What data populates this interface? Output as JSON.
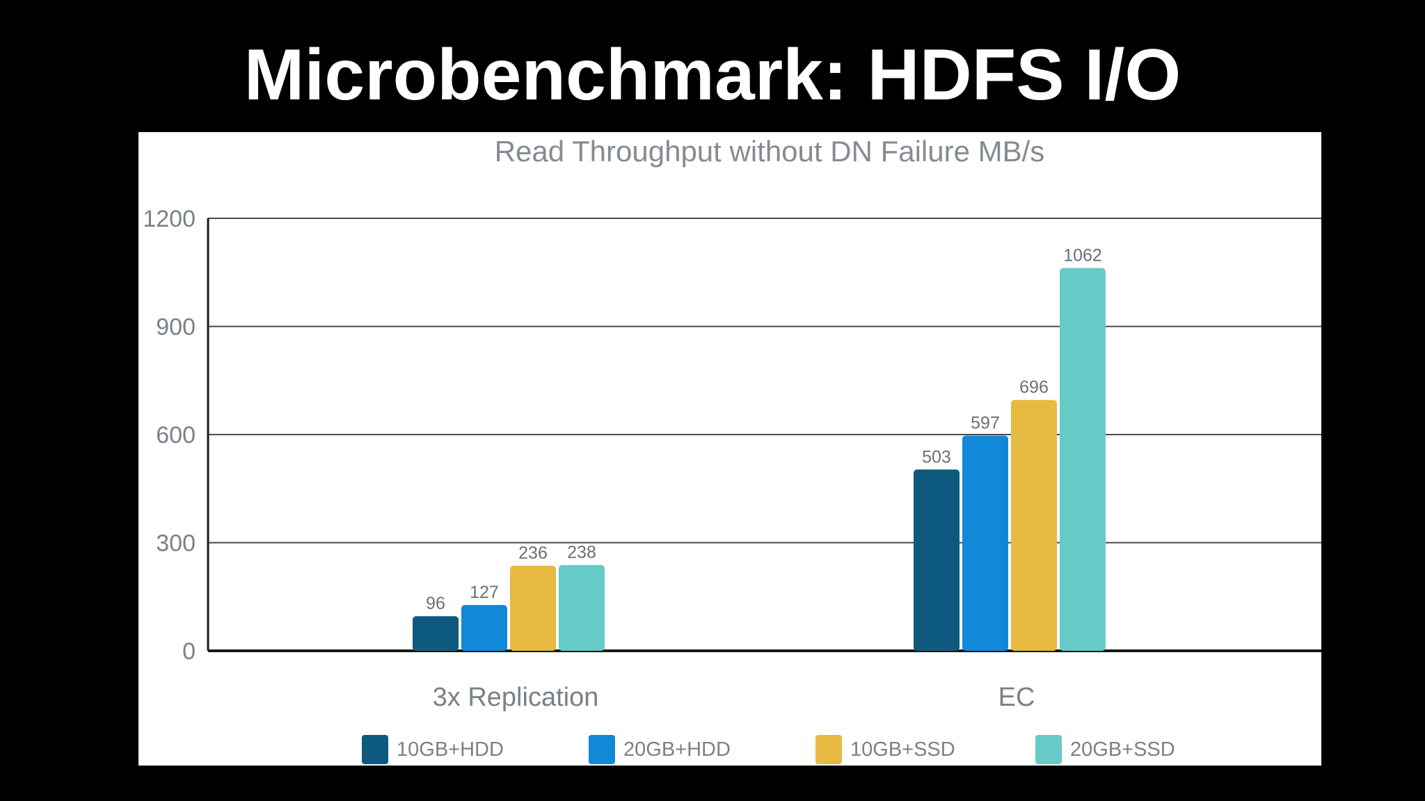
{
  "slide": {
    "title": "Microbenchmark: HDFS I/O"
  },
  "chart_data": {
    "type": "bar",
    "title": "Read Throughput without DN Failure MB/s",
    "xlabel": "",
    "ylabel": "",
    "categories": [
      "3x Replication",
      "EC"
    ],
    "series": [
      {
        "name": "10GB+HDD",
        "color": "#0d5a7e",
        "values": [
          96,
          503
        ]
      },
      {
        "name": "20GB+HDD",
        "color": "#1188d8",
        "values": [
          127,
          597
        ]
      },
      {
        "name": "10GB+SSD",
        "color": "#e6b941",
        "values": [
          236,
          696
        ]
      },
      {
        "name": "20GB+SSD",
        "color": "#66cbc6",
        "values": [
          238,
          1062
        ]
      }
    ],
    "ylim": [
      0,
      1200
    ],
    "yticks": [
      0,
      300,
      600,
      900,
      1200
    ],
    "grid": true,
    "data_labels": true,
    "legend_position": "bottom"
  }
}
